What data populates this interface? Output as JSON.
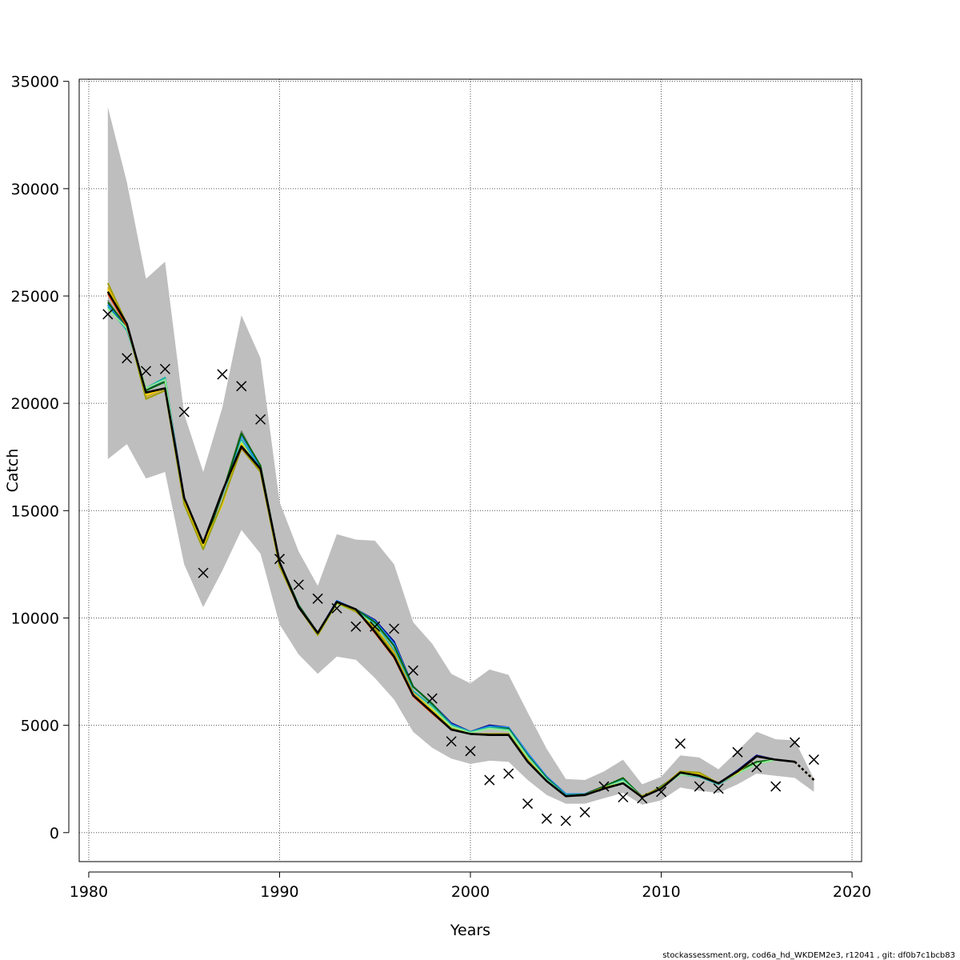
{
  "chart_data": {
    "type": "line",
    "xlabel": "Years",
    "ylabel": "Catch",
    "xlim": [
      1979.5,
      2020.5
    ],
    "ylim": [
      -1350,
      35100
    ],
    "xticks": [
      1980,
      1990,
      2000,
      2010,
      2020
    ],
    "yticks": [
      0,
      5000,
      10000,
      15000,
      20000,
      25000,
      30000,
      35000
    ],
    "xtick_labels": [
      "1980",
      "1990",
      "2000",
      "2010",
      "2020"
    ],
    "ytick_labels": [
      "0",
      "5000",
      "10000",
      "15000",
      "20000",
      "25000",
      "30000",
      "35000"
    ],
    "grid": true,
    "footer": "stockassessment.org, cod6a_hd_WKDEM2e3, r12041 , git: df0b7c1bcb83",
    "years": [
      1981,
      1982,
      1983,
      1984,
      1985,
      1986,
      1987,
      1988,
      1989,
      1990,
      1991,
      1992,
      1993,
      1994,
      1995,
      1996,
      1997,
      1998,
      1999,
      2000,
      2001,
      2002,
      2003,
      2004,
      2005,
      2006,
      2007,
      2008,
      2009,
      2010,
      2011,
      2012,
      2013,
      2014,
      2015,
      2016,
      2017,
      2018
    ],
    "band": {
      "color": "#bebebe",
      "upper": [
        33800,
        30300,
        25800,
        26600,
        19500,
        16800,
        19800,
        24100,
        22100,
        15400,
        13100,
        11500,
        13900,
        13650,
        13600,
        12500,
        9800,
        8800,
        7400,
        6950,
        7600,
        7350,
        5600,
        3900,
        2500,
        2450,
        2850,
        3400,
        2250,
        2600,
        3600,
        3500,
        2950,
        3800,
        4700,
        4350,
        4300,
        2500
      ],
      "lower": [
        17400,
        18100,
        16500,
        16800,
        12500,
        10500,
        12200,
        14100,
        13000,
        9700,
        8300,
        7400,
        8200,
        8050,
        7200,
        6200,
        4700,
        3950,
        3450,
        3200,
        3350,
        3300,
        2450,
        1750,
        1350,
        1350,
        1600,
        1850,
        1300,
        1500,
        2100,
        1950,
        1850,
        2250,
        2750,
        2650,
        2550,
        1900
      ]
    },
    "series": [
      {
        "color": "#808080",
        "values": [
          24800,
          23500,
          20700,
          21200,
          15400,
          13200,
          15800,
          18700,
          17000,
          12600,
          10600,
          9300,
          10700,
          10400,
          9900,
          8800,
          6800,
          6000,
          5100,
          4700,
          5000,
          4900,
          3700,
          2600,
          1800,
          1800,
          2150,
          2500,
          1700,
          2100,
          2800,
          2600,
          2300,
          2900,
          3550,
          3400,
          3300,
          2450
        ]
      },
      {
        "color": "#00008b",
        "values": [
          24600,
          23500,
          20600,
          21100,
          15600,
          13300,
          15800,
          18500,
          17000,
          12600,
          10600,
          9300,
          10800,
          10400,
          9900,
          8900,
          6800,
          6000,
          5100,
          4700,
          5000,
          4900,
          3700,
          2600,
          1800,
          1800,
          2150,
          2400,
          1700,
          2100,
          2750,
          2600,
          2300,
          2900,
          3600,
          3400,
          3300,
          2450
        ]
      },
      {
        "color": "#1e90ff",
        "values": [
          24600,
          23600,
          20600,
          21000,
          15600,
          13300,
          15800,
          18500,
          17000,
          12600,
          10600,
          9300,
          10800,
          10400,
          9850,
          8800,
          6800,
          6000,
          5050,
          4700,
          4950,
          4900,
          3700,
          2600,
          1800,
          1800,
          2100,
          2450,
          1700,
          2100,
          2750,
          2650,
          2300,
          2850,
          3550,
          3400,
          3300,
          2450
        ]
      },
      {
        "color": "#006400",
        "values": [
          24700,
          23600,
          20600,
          21000,
          15500,
          13300,
          15800,
          18600,
          17100,
          12600,
          10600,
          9300,
          10700,
          10400,
          9800,
          8700,
          6800,
          6000,
          5000,
          4700,
          4900,
          4850,
          3600,
          2550,
          1750,
          1780,
          2150,
          2550,
          1650,
          2150,
          2800,
          2700,
          2300,
          2850,
          3300,
          3400,
          3300,
          2450
        ]
      },
      {
        "color": "#20b2aa",
        "values": [
          24500,
          23400,
          20700,
          21200,
          15400,
          13200,
          15400,
          18300,
          16900,
          12500,
          10500,
          9250,
          10700,
          10350,
          9700,
          8500,
          6600,
          5900,
          5000,
          4700,
          4900,
          4800,
          3550,
          2500,
          1750,
          1750,
          2100,
          2450,
          1650,
          2100,
          2700,
          2600,
          2250,
          2750,
          3200,
          3400,
          3300,
          2450
        ]
      },
      {
        "color": "#90ee90",
        "values": [
          24400,
          23500,
          20700,
          21100,
          15300,
          13300,
          15300,
          18200,
          16800,
          12500,
          10500,
          9200,
          10650,
          10300,
          9650,
          8400,
          6500,
          5800,
          4950,
          4650,
          4850,
          4750,
          3500,
          2450,
          1700,
          1750,
          2100,
          2400,
          1650,
          2100,
          2700,
          2650,
          2300,
          2750,
          3200,
          3400,
          3300,
          2450
        ]
      },
      {
        "color": "#daa520",
        "values": [
          25400,
          23700,
          20300,
          20700,
          15400,
          13400,
          15300,
          18100,
          16800,
          12400,
          10500,
          9200,
          10700,
          10300,
          9550,
          8400,
          6500,
          5700,
          4850,
          4600,
          4600,
          4600,
          3400,
          2400,
          1700,
          1750,
          2100,
          2300,
          1700,
          2100,
          2850,
          2750,
          2300,
          2850,
          3550,
          3400,
          3300,
          2450
        ]
      },
      {
        "color": "#ffd700",
        "values": [
          25300,
          23700,
          20400,
          20700,
          15400,
          13400,
          15300,
          18100,
          16800,
          12400,
          10500,
          9200,
          10700,
          10350,
          9500,
          8300,
          6400,
          5700,
          4850,
          4600,
          4550,
          4550,
          3350,
          2400,
          1700,
          1750,
          2050,
          2300,
          1700,
          2100,
          2850,
          2750,
          2300,
          2800,
          3550,
          3400,
          3300,
          2450
        ]
      },
      {
        "color": "#ff4500",
        "values": [
          25100,
          23600,
          20500,
          20700,
          15600,
          13500,
          15900,
          18000,
          16900,
          12500,
          10500,
          9300,
          10750,
          10400,
          9300,
          8150,
          6350,
          5550,
          4800,
          4600,
          4550,
          4550,
          3300,
          2400,
          1700,
          1750,
          2050,
          2300,
          1650,
          2050,
          2800,
          2650,
          2300,
          2850,
          3550,
          3400,
          3300,
          2450
        ]
      },
      {
        "color": "#a0a000",
        "values": [
          25600,
          23700,
          20200,
          20600,
          15300,
          13200,
          15400,
          17900,
          16800,
          12400,
          10500,
          9200,
          10700,
          10300,
          9500,
          8300,
          6400,
          5650,
          4850,
          4600,
          4600,
          4600,
          3350,
          2400,
          1700,
          1750,
          2100,
          2300,
          1700,
          2100,
          2850,
          2800,
          2300,
          2850,
          3550,
          3400,
          3300,
          2450
        ]
      },
      {
        "color": "#8b0000",
        "values": [
          25200,
          23700,
          20500,
          20700,
          15600,
          13500,
          15900,
          17950,
          16950,
          12600,
          10500,
          9300,
          10750,
          10400,
          9350,
          8200,
          6400,
          5600,
          4800,
          4600,
          4550,
          4550,
          3300,
          2400,
          1700,
          1750,
          2050,
          2300,
          1650,
          2050,
          2800,
          2650,
          2300,
          2850,
          3550,
          3400,
          3300,
          2450
        ]
      },
      {
        "color": "#000000",
        "values": [
          25200,
          23700,
          20500,
          20700,
          15600,
          13500,
          15900,
          18000,
          16950,
          12600,
          10500,
          9300,
          10750,
          10400,
          9350,
          8200,
          6400,
          5600,
          4800,
          4600,
          4550,
          4550,
          3300,
          2400,
          1700,
          1750,
          2050,
          2300,
          1650,
          2050,
          2800,
          2650,
          2300,
          2850,
          3550,
          3400,
          3300,
          2450
        ]
      }
    ],
    "observations": {
      "marker": "x",
      "x": [
        1981,
        1982,
        1983,
        1984,
        1985,
        1986,
        1987,
        1988,
        1989,
        1990,
        1991,
        1992,
        1993,
        1994,
        1995,
        1996,
        1997,
        1998,
        1999,
        2000,
        2001,
        2002,
        2003,
        2004,
        2005,
        2006,
        2007,
        2008,
        2009,
        2010,
        2011,
        2012,
        2013,
        2014,
        2015,
        2016,
        2017,
        2018
      ],
      "y": [
        24150,
        22100,
        21500,
        21600,
        19600,
        12100,
        21350,
        20800,
        19250,
        12750,
        11550,
        10900,
        10450,
        9600,
        9600,
        9500,
        7550,
        6250,
        4250,
        3800,
        2450,
        2750,
        1350,
        650,
        550,
        950,
        2150,
        1650,
        1600,
        1900,
        4150,
        2150,
        2050,
        3750,
        3050,
        2150,
        4200,
        3400
      ]
    }
  }
}
